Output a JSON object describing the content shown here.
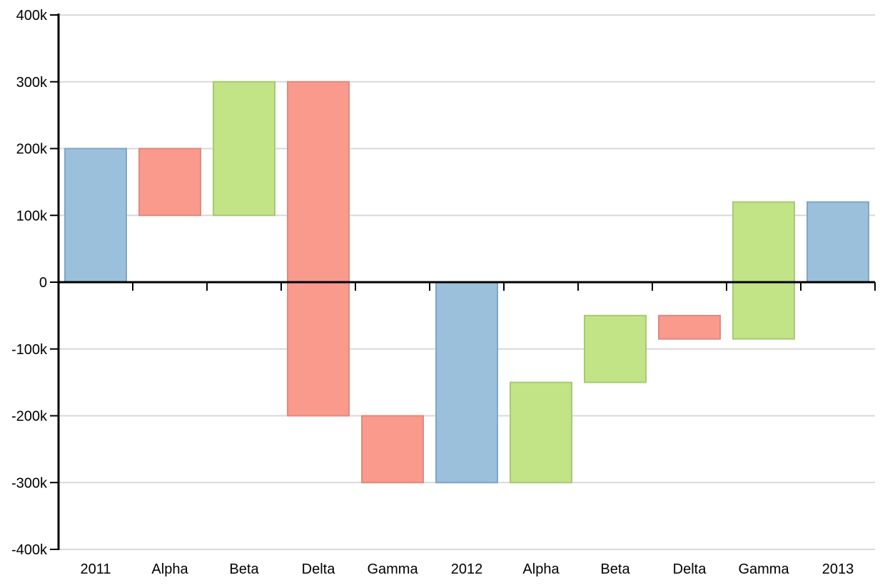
{
  "chart_data": {
    "type": "bar",
    "variant": "waterfall",
    "title": "",
    "xlabel": "",
    "ylabel": "",
    "categories": [
      "2011",
      "Alpha",
      "Beta",
      "Delta",
      "Gamma",
      "2012",
      "Alpha",
      "Beta",
      "Delta",
      "Gamma",
      "2013"
    ],
    "bars": [
      {
        "category": "2011",
        "kind": "total",
        "start": 0,
        "end": 200000
      },
      {
        "category": "Alpha",
        "kind": "decrease",
        "start": 200000,
        "end": 100000
      },
      {
        "category": "Beta",
        "kind": "increase",
        "start": 100000,
        "end": 300000
      },
      {
        "category": "Delta",
        "kind": "decrease",
        "start": 300000,
        "end": -200000
      },
      {
        "category": "Gamma",
        "kind": "decrease",
        "start": -200000,
        "end": -300000
      },
      {
        "category": "2012",
        "kind": "total",
        "start": 0,
        "end": -300000
      },
      {
        "category": "Alpha",
        "kind": "increase",
        "start": -300000,
        "end": -150000
      },
      {
        "category": "Beta",
        "kind": "increase",
        "start": -150000,
        "end": -50000
      },
      {
        "category": "Delta",
        "kind": "decrease",
        "start": -50000,
        "end": -85000
      },
      {
        "category": "Gamma",
        "kind": "increase",
        "start": -85000,
        "end": 120000
      },
      {
        "category": "2013",
        "kind": "total",
        "start": 0,
        "end": 120000
      }
    ],
    "ylim": [
      -400000,
      400000
    ],
    "yticks": [
      400000,
      300000,
      200000,
      100000,
      0,
      -100000,
      -200000,
      -300000,
      -400000
    ],
    "ytick_labels": [
      "400k",
      "300k",
      "200k",
      "100k",
      "0",
      "-100k",
      "-200k",
      "-300k",
      "-400k"
    ],
    "grid": true,
    "legend": "none",
    "colors": {
      "total_fill": "#9ac0dc",
      "total_stroke": "#7fa6c6",
      "increase_fill": "#c2e486",
      "increase_stroke": "#a6ca72",
      "decrease_fill": "#fa9a8d",
      "decrease_stroke": "#de8a7f",
      "grid": "#d9d9d9",
      "axis": "#000000"
    }
  }
}
